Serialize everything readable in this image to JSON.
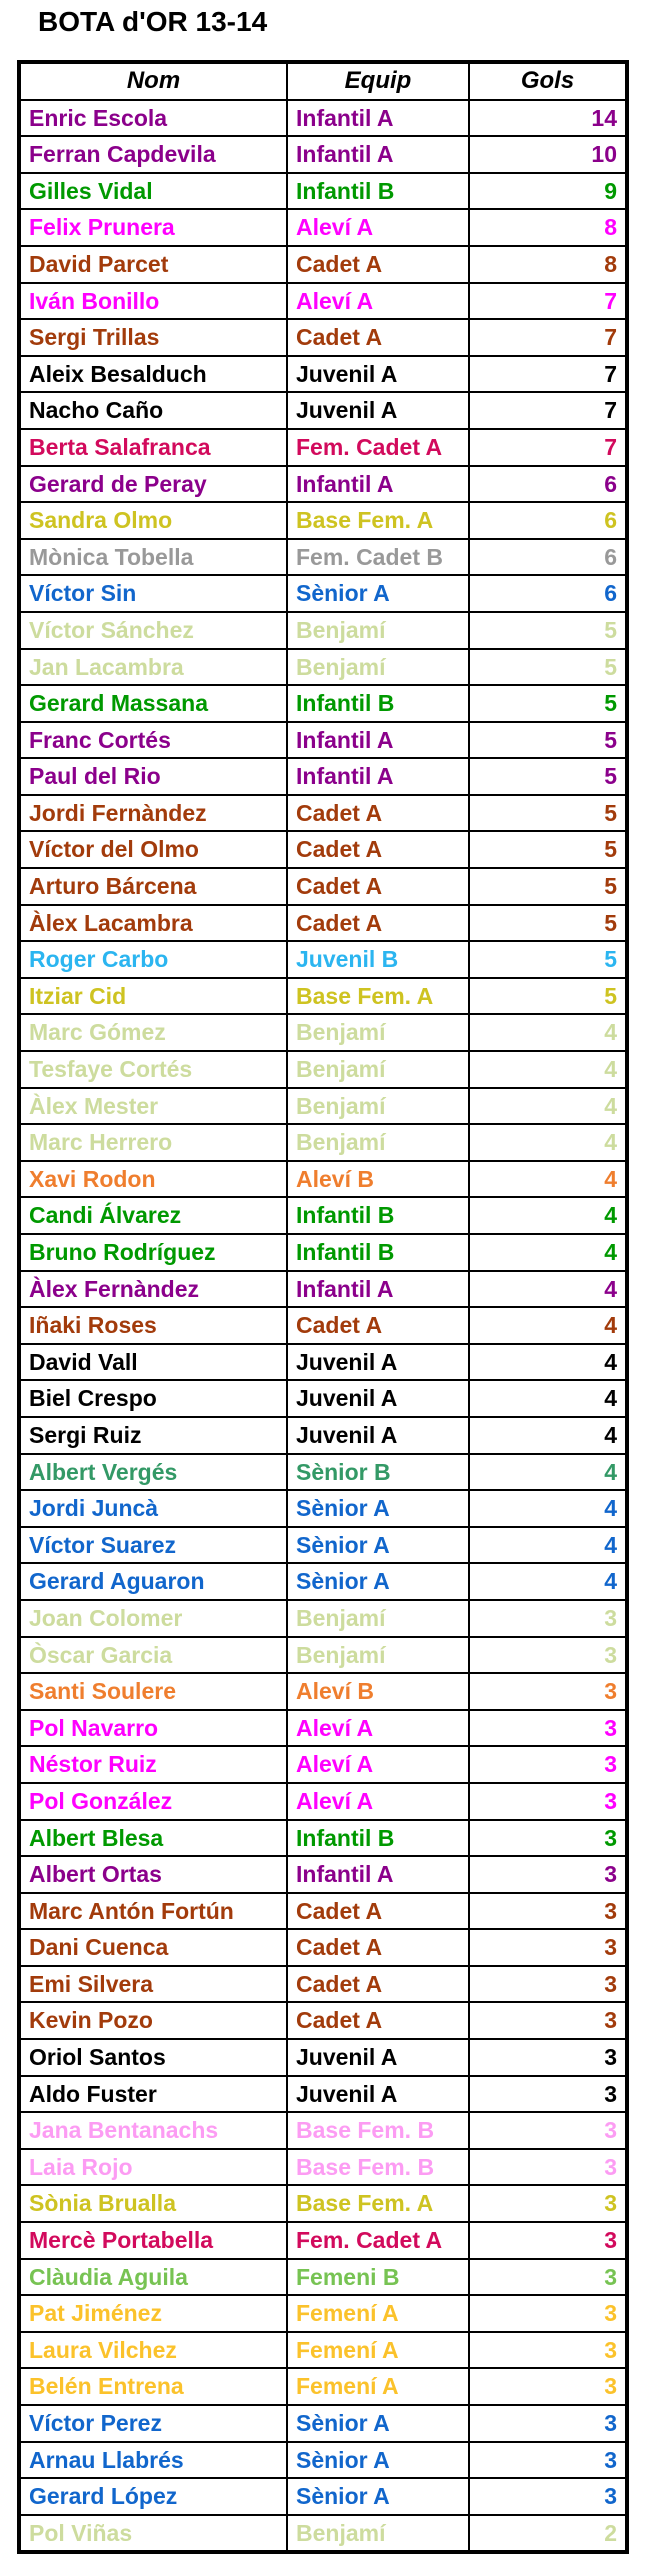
{
  "title": "BOTA d'OR 13-14",
  "table": {
    "headers": {
      "nom": "Nom",
      "equip": "Equip",
      "gols": "Gols"
    }
  },
  "colors": {
    "infantil_a": "#8B008B",
    "infantil_b": "#009900",
    "alevi_a": "#FF00FF",
    "alevi_b": "#EF7E2E",
    "cadet_a": "#A23B0B",
    "juvenil_a": "#000000",
    "juvenil_b": "#2BB5F0",
    "fem_cadet_a": "#D20A5C",
    "fem_cadet_b": "#999999",
    "base_fem_a": "#CEC321",
    "base_fem_b": "#FC9CF3",
    "femeni_a": "#FBC22B",
    "femeni_b": "#77C353",
    "senior_a": "#1166CC",
    "senior_b": "#339966",
    "benjami": "#CDDC9E"
  },
  "rows": [
    {
      "nom": "Enric Escola",
      "equip": "Infantil A",
      "gols": 14,
      "color": "infantil_a"
    },
    {
      "nom": "Ferran Capdevila",
      "equip": "Infantil A",
      "gols": 10,
      "color": "infantil_a"
    },
    {
      "nom": "Gilles Vidal",
      "equip": "Infantil B",
      "gols": 9,
      "color": "infantil_b"
    },
    {
      "nom": "Felix Prunera",
      "equip": "Aleví A",
      "gols": 8,
      "color": "alevi_a"
    },
    {
      "nom": "David Parcet",
      "equip": "Cadet A",
      "gols": 8,
      "color": "cadet_a"
    },
    {
      "nom": "Iván Bonillo",
      "equip": "Aleví A",
      "gols": 7,
      "color": "alevi_a"
    },
    {
      "nom": "Sergi Trillas",
      "equip": "Cadet A",
      "gols": 7,
      "color": "cadet_a"
    },
    {
      "nom": "Aleix Besalduch",
      "equip": "Juvenil A",
      "gols": 7,
      "color": "juvenil_a"
    },
    {
      "nom": "Nacho Caño",
      "equip": "Juvenil A",
      "gols": 7,
      "color": "juvenil_a"
    },
    {
      "nom": "Berta Salafranca",
      "equip": "Fem. Cadet A",
      "gols": 7,
      "color": "fem_cadet_a"
    },
    {
      "nom": "Gerard de Peray",
      "equip": "Infantil A",
      "gols": 6,
      "color": "infantil_a"
    },
    {
      "nom": "Sandra Olmo",
      "equip": "Base Fem. A",
      "gols": 6,
      "color": "base_fem_a"
    },
    {
      "nom": "Mònica Tobella",
      "equip": "Fem. Cadet B",
      "gols": 6,
      "color": "fem_cadet_b"
    },
    {
      "nom": "Víctor Sin",
      "equip": "Sènior A",
      "gols": 6,
      "color": "senior_a"
    },
    {
      "nom": "Víctor Sánchez",
      "equip": "Benjamí",
      "gols": 5,
      "color": "benjami"
    },
    {
      "nom": "Jan Lacambra",
      "equip": "Benjamí",
      "gols": 5,
      "color": "benjami"
    },
    {
      "nom": "Gerard Massana",
      "equip": "Infantil B",
      "gols": 5,
      "color": "infantil_b"
    },
    {
      "nom": "Franc Cortés",
      "equip": "Infantil A",
      "gols": 5,
      "color": "infantil_a"
    },
    {
      "nom": "Paul del Rio",
      "equip": "Infantil A",
      "gols": 5,
      "color": "infantil_a"
    },
    {
      "nom": "Jordi Fernàndez",
      "equip": "Cadet A",
      "gols": 5,
      "color": "cadet_a"
    },
    {
      "nom": "Víctor del Olmo",
      "equip": "Cadet A",
      "gols": 5,
      "color": "cadet_a"
    },
    {
      "nom": "Arturo Bárcena",
      "equip": "Cadet A",
      "gols": 5,
      "color": "cadet_a"
    },
    {
      "nom": "Àlex Lacambra",
      "equip": "Cadet A",
      "gols": 5,
      "color": "cadet_a"
    },
    {
      "nom": "Roger Carbo",
      "equip": "Juvenil B",
      "gols": 5,
      "color": "juvenil_b"
    },
    {
      "nom": "Itziar Cid",
      "equip": "Base Fem. A",
      "gols": 5,
      "color": "base_fem_a"
    },
    {
      "nom": "Marc Gómez",
      "equip": "Benjamí",
      "gols": 4,
      "color": "benjami"
    },
    {
      "nom": "Tesfaye Cortés",
      "equip": "Benjamí",
      "gols": 4,
      "color": "benjami"
    },
    {
      "nom": "Àlex Mester",
      "equip": "Benjamí",
      "gols": 4,
      "color": "benjami"
    },
    {
      "nom": "Marc Herrero",
      "equip": "Benjamí",
      "gols": 4,
      "color": "benjami"
    },
    {
      "nom": "Xavi Rodon",
      "equip": "Aleví B",
      "gols": 4,
      "color": "alevi_b"
    },
    {
      "nom": "Candi Álvarez",
      "equip": "Infantil B",
      "gols": 4,
      "color": "infantil_b"
    },
    {
      "nom": "Bruno Rodríguez",
      "equip": "Infantil B",
      "gols": 4,
      "color": "infantil_b"
    },
    {
      "nom": "Àlex Fernàndez",
      "equip": "Infantil A",
      "gols": 4,
      "color": "infantil_a"
    },
    {
      "nom": "Iñaki Roses",
      "equip": "Cadet A",
      "gols": 4,
      "color": "cadet_a"
    },
    {
      "nom": "David Vall",
      "equip": "Juvenil A",
      "gols": 4,
      "color": "juvenil_a"
    },
    {
      "nom": "Biel Crespo",
      "equip": "Juvenil A",
      "gols": 4,
      "color": "juvenil_a"
    },
    {
      "nom": "Sergi Ruiz",
      "equip": "Juvenil A",
      "gols": 4,
      "color": "juvenil_a"
    },
    {
      "nom": "Albert Vergés",
      "equip": "Sènior B",
      "gols": 4,
      "color": "senior_b"
    },
    {
      "nom": "Jordi Juncà",
      "equip": "Sènior A",
      "gols": 4,
      "color": "senior_a"
    },
    {
      "nom": "Víctor Suarez",
      "equip": "Sènior A",
      "gols": 4,
      "color": "senior_a"
    },
    {
      "nom": "Gerard Aguaron",
      "equip": "Sènior A",
      "gols": 4,
      "color": "senior_a"
    },
    {
      "nom": "Joan Colomer",
      "equip": "Benjamí",
      "gols": 3,
      "color": "benjami"
    },
    {
      "nom": "Òscar Garcia",
      "equip": "Benjamí",
      "gols": 3,
      "color": "benjami"
    },
    {
      "nom": "Santi Soulere",
      "equip": "Aleví B",
      "gols": 3,
      "color": "alevi_b"
    },
    {
      "nom": "Pol Navarro",
      "equip": "Aleví A",
      "gols": 3,
      "color": "alevi_a"
    },
    {
      "nom": "Néstor Ruiz",
      "equip": "Aleví A",
      "gols": 3,
      "color": "alevi_a"
    },
    {
      "nom": "Pol González",
      "equip": "Aleví A",
      "gols": 3,
      "color": "alevi_a"
    },
    {
      "nom": "Albert Blesa",
      "equip": "Infantil B",
      "gols": 3,
      "color": "infantil_b"
    },
    {
      "nom": "Albert Ortas",
      "equip": "Infantil A",
      "gols": 3,
      "color": "infantil_a"
    },
    {
      "nom": "Marc Antón Fortún",
      "equip": "Cadet A",
      "gols": 3,
      "color": "cadet_a"
    },
    {
      "nom": "Dani Cuenca",
      "equip": "Cadet A",
      "gols": 3,
      "color": "cadet_a"
    },
    {
      "nom": "Emi Silvera",
      "equip": "Cadet A",
      "gols": 3,
      "color": "cadet_a"
    },
    {
      "nom": "Kevin Pozo",
      "equip": "Cadet A",
      "gols": 3,
      "color": "cadet_a"
    },
    {
      "nom": "Oriol Santos",
      "equip": "Juvenil A",
      "gols": 3,
      "color": "juvenil_a"
    },
    {
      "nom": "Aldo Fuster",
      "equip": "Juvenil A",
      "gols": 3,
      "color": "juvenil_a"
    },
    {
      "nom": "Jana Bentanachs",
      "equip": "Base Fem. B",
      "gols": 3,
      "color": "base_fem_b"
    },
    {
      "nom": "Laia Rojo",
      "equip": "Base Fem. B",
      "gols": 3,
      "color": "base_fem_b"
    },
    {
      "nom": "Sònia Brualla",
      "equip": "Base Fem. A",
      "gols": 3,
      "color": "base_fem_a"
    },
    {
      "nom": "Mercè Portabella",
      "equip": "Fem. Cadet A",
      "gols": 3,
      "color": "fem_cadet_a"
    },
    {
      "nom": "Clàudia Aguila",
      "equip": "Femeni B",
      "gols": 3,
      "color": "femeni_b"
    },
    {
      "nom": "Pat Jiménez",
      "equip": "Femení A",
      "gols": 3,
      "color": "femeni_a"
    },
    {
      "nom": "Laura Vilchez",
      "equip": "Femení A",
      "gols": 3,
      "color": "femeni_a"
    },
    {
      "nom": "Belén Entrena",
      "equip": "Femení A",
      "gols": 3,
      "color": "femeni_a"
    },
    {
      "nom": "Víctor Perez",
      "equip": "Sènior A",
      "gols": 3,
      "color": "senior_a"
    },
    {
      "nom": "Arnau Llabrés",
      "equip": "Sènior A",
      "gols": 3,
      "color": "senior_a"
    },
    {
      "nom": "Gerard López",
      "equip": "Sènior A",
      "gols": 3,
      "color": "senior_a"
    },
    {
      "nom": "Pol Viñas",
      "equip": "Benjamí",
      "gols": 2,
      "color": "benjami"
    }
  ]
}
